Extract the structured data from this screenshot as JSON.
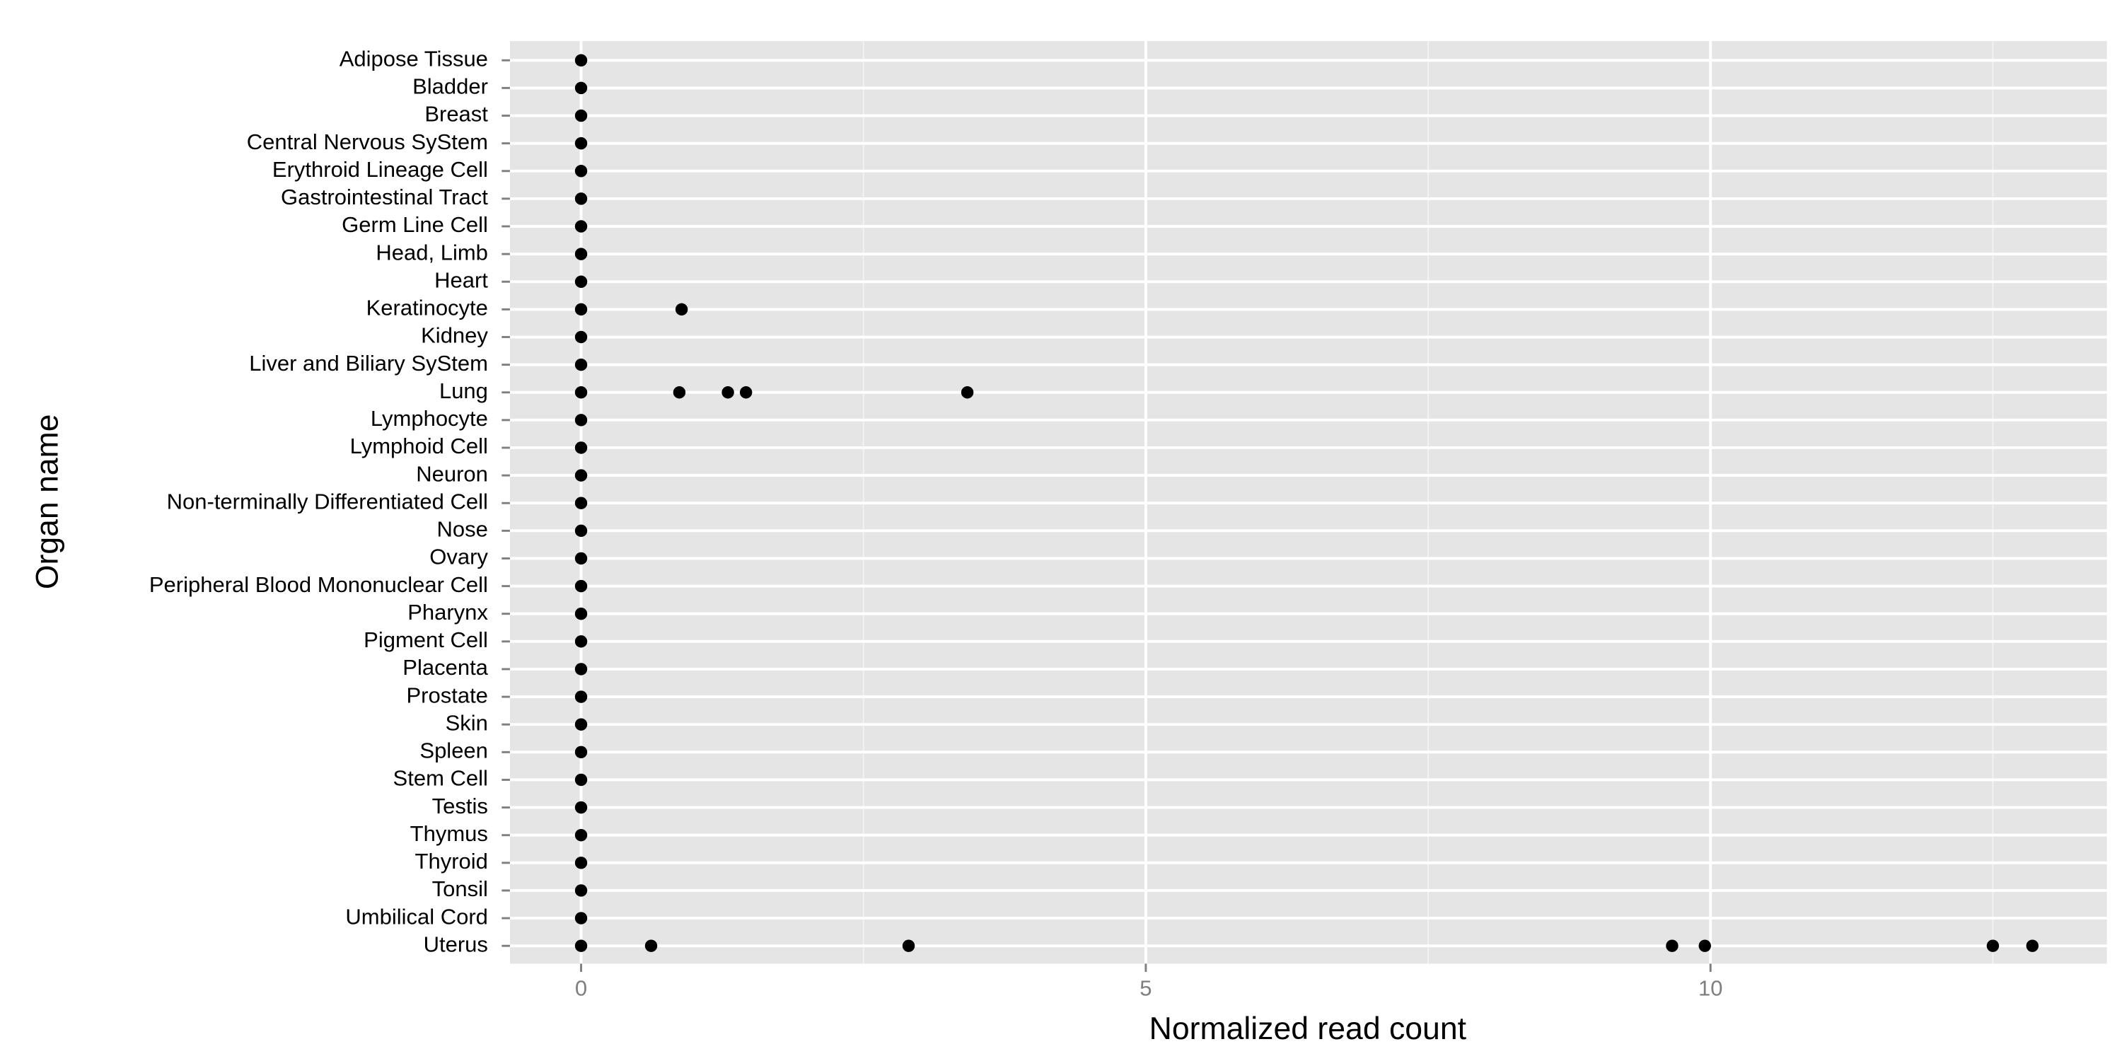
{
  "chart_data": {
    "type": "strip",
    "x_label": "Normalized read count",
    "y_label": "Organ name",
    "categories": [
      "Adipose Tissue",
      "Bladder",
      "Breast",
      "Central Nervous SyStem",
      "Erythroid Lineage Cell",
      "Gastrointestinal Tract",
      "Germ Line Cell",
      "Head, Limb",
      "Heart",
      "Keratinocyte",
      "Kidney",
      "Liver and Biliary SyStem",
      "Lung",
      "Lymphocyte",
      "Lymphoid Cell",
      "Neuron",
      "Non-terminally Differentiated Cell",
      "Nose",
      "Ovary",
      "Peripheral Blood Mononuclear Cell",
      "Pharynx",
      "Pigment Cell",
      "Placenta",
      "Prostate",
      "Skin",
      "Spleen",
      "Stem Cell",
      "Testis",
      "Thymus",
      "Thyroid",
      "Tonsil",
      "Umbilical Cord",
      "Uterus"
    ],
    "values": [
      [
        0
      ],
      [
        0
      ],
      [
        0
      ],
      [
        0
      ],
      [
        0
      ],
      [
        0
      ],
      [
        0
      ],
      [
        0
      ],
      [
        0
      ],
      [
        0,
        0.89
      ],
      [
        0
      ],
      [
        0
      ],
      [
        0,
        0.87,
        1.3,
        1.46,
        3.42
      ],
      [
        0
      ],
      [
        0
      ],
      [
        0
      ],
      [
        0
      ],
      [
        0
      ],
      [
        0
      ],
      [
        0
      ],
      [
        0
      ],
      [
        0
      ],
      [
        0
      ],
      [
        0
      ],
      [
        0
      ],
      [
        0
      ],
      [
        0
      ],
      [
        0
      ],
      [
        0
      ],
      [
        0
      ],
      [
        0
      ],
      [
        0
      ],
      [
        0,
        0.62,
        2.9,
        9.66,
        9.95,
        12.5,
        12.85
      ]
    ],
    "color": "#000000",
    "xlim": [
      -0.63,
      13.51
    ],
    "xticks": [
      0,
      5,
      10
    ],
    "x_minor_grid": [
      2.5,
      7.5,
      12.5
    ],
    "grid": true
  }
}
